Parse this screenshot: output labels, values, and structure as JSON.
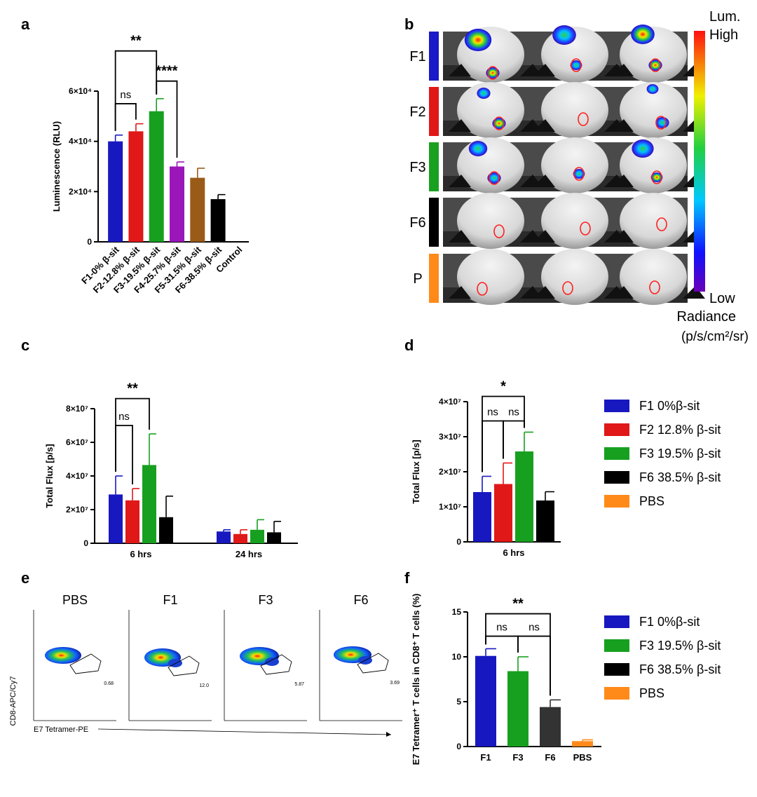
{
  "panel_labels": {
    "a": "a",
    "b": "b",
    "c": "c",
    "d": "d",
    "e": "e",
    "f": "f"
  },
  "chart_data": [
    {
      "id": "a",
      "type": "bar",
      "ylabel": "Luminescence (RLU)",
      "categories": [
        "F1-0% β-sit",
        "F2-12.8% β-sit",
        "F3-19.5% β-sit",
        "F4-25.7% β-sit",
        "F5-31.5% β-sit",
        "F6-38.5% β-sit",
        "Control"
      ],
      "values": [
        40000,
        44000,
        52000,
        30000,
        25500,
        17000,
        0
      ],
      "errors": [
        2500,
        3000,
        5000,
        1800,
        3800,
        1800,
        0
      ],
      "colors": [
        "#1818c0",
        "#e01818",
        "#17a020",
        "#9a16b8",
        "#9a5a18",
        "#000000",
        "#000000"
      ],
      "ylim": [
        0,
        60000
      ],
      "yticks": [
        {
          "v": 0,
          "t": "0"
        },
        {
          "v": 20000,
          "t": "2×10⁴"
        },
        {
          "v": 40000,
          "t": "4×10⁴"
        },
        {
          "v": 60000,
          "t": "6×10⁴"
        }
      ],
      "sig": [
        {
          "from": 0,
          "to": 1,
          "label": "ns",
          "y": 55000,
          "tall": true
        },
        {
          "from": 2,
          "to": 3,
          "label": "****",
          "y": 64000
        },
        {
          "from": 0,
          "to": 2,
          "label": "**",
          "y": 76000
        }
      ]
    },
    {
      "id": "c",
      "type": "bar",
      "ylabel": "Total Flux [p/s]",
      "groups": [
        "6 hrs",
        "24 hrs"
      ],
      "series": [
        {
          "name": "F1",
          "color": "#1818c0",
          "values": [
            29000000,
            7000000
          ],
          "errors": [
            11000000,
            1000000
          ]
        },
        {
          "name": "F2",
          "color": "#e01818",
          "values": [
            25500000,
            5500000
          ],
          "errors": [
            7000000,
            2500000
          ]
        },
        {
          "name": "F3",
          "color": "#17a020",
          "values": [
            46500000,
            8000000
          ],
          "errors": [
            18500000,
            6000000
          ]
        },
        {
          "name": "F6",
          "color": "#000000",
          "values": [
            15500000,
            6500000
          ],
          "errors": [
            12500000,
            6500000
          ]
        }
      ],
      "ylim": [
        0,
        80000000
      ],
      "yticks": [
        {
          "v": 0,
          "t": "0"
        },
        {
          "v": 20000000,
          "t": "2×10⁷"
        },
        {
          "v": 40000000,
          "t": "4×10⁷"
        },
        {
          "v": 60000000,
          "t": "6×10⁷"
        },
        {
          "v": 80000000,
          "t": "8×10⁷"
        }
      ],
      "sig": [
        {
          "from": 0,
          "to": 1,
          "label": "ns",
          "y": 70000000
        },
        {
          "from": 0,
          "to": 2,
          "label": "**",
          "y": 86000000
        }
      ]
    },
    {
      "id": "d",
      "type": "bar",
      "ylabel": "Total Flux [p/s]",
      "groups": [
        "6 hrs"
      ],
      "series": [
        {
          "name": "F1",
          "color": "#1818c0",
          "values": [
            14200000
          ],
          "errors": [
            4500000
          ]
        },
        {
          "name": "F2",
          "color": "#e01818",
          "values": [
            16500000
          ],
          "errors": [
            6000000
          ]
        },
        {
          "name": "F3",
          "color": "#17a020",
          "values": [
            25800000
          ],
          "errors": [
            5500000
          ]
        },
        {
          "name": "F6",
          "color": "#000000",
          "values": [
            11800000
          ],
          "errors": [
            2500000
          ]
        }
      ],
      "ylim": [
        0,
        40000000
      ],
      "yticks": [
        {
          "v": 0,
          "t": "0"
        },
        {
          "v": 10000000,
          "t": "1×10⁷"
        },
        {
          "v": 20000000,
          "t": "2×10⁷"
        },
        {
          "v": 30000000,
          "t": "3×10⁷"
        },
        {
          "v": 40000000,
          "t": "4×10⁷"
        }
      ],
      "sig": [
        {
          "from": 0,
          "to": 1,
          "label": "ns",
          "y": 34500000
        },
        {
          "from": 1,
          "to": 2,
          "label": "ns",
          "y": 34500000
        },
        {
          "from": 0,
          "to": 2,
          "label": "*",
          "y": 41500000
        }
      ]
    },
    {
      "id": "f",
      "type": "bar",
      "ylabel": "E7 Tetramer⁺ T cells in CD8⁺ T cells (%)",
      "categories": [
        "F1",
        "F3",
        "F6",
        "PBS"
      ],
      "values": [
        10.1,
        8.4,
        4.4,
        0.6
      ],
      "errors": [
        0.8,
        1.6,
        0.8,
        0.15
      ],
      "colors": [
        "#1818c0",
        "#17a020",
        "#333333",
        "#ff8a1a"
      ],
      "ylim": [
        0,
        15
      ],
      "yticks": [
        {
          "v": 0,
          "t": "0"
        },
        {
          "v": 5,
          "t": "5"
        },
        {
          "v": 10,
          "t": "10"
        },
        {
          "v": 15,
          "t": "15"
        }
      ],
      "sig": [
        {
          "from": 0,
          "to": 1,
          "label": "ns",
          "y": 12.3
        },
        {
          "from": 1,
          "to": 2,
          "label": "ns",
          "y": 12.3
        },
        {
          "from": 0,
          "to": 2,
          "label": "**",
          "y": 14.8
        }
      ]
    }
  ],
  "legend_d": [
    {
      "label": "F1 0%β-sit",
      "color": "#1818c0"
    },
    {
      "label": "F2 12.8% β-sit",
      "color": "#e01818"
    },
    {
      "label": "F3 19.5% β-sit",
      "color": "#17a020"
    },
    {
      "label": "F6 38.5% β-sit",
      "color": "#000000"
    },
    {
      "label": "PBS",
      "color": "#ff8a1a"
    }
  ],
  "legend_f": [
    {
      "label": "F1 0%β-sit",
      "color": "#1818c0"
    },
    {
      "label": "F3 19.5% β-sit",
      "color": "#17a020"
    },
    {
      "label": "F6 38.5% β-sit",
      "color": "#000000"
    },
    {
      "label": "PBS",
      "color": "#ff8a1a"
    }
  ],
  "panel_b": {
    "rows": [
      {
        "label": "F1",
        "color": "#1a1ac8"
      },
      {
        "label": "F2",
        "color": "#e01818"
      },
      {
        "label": "F3",
        "color": "#1aa020"
      },
      {
        "label": "F6",
        "color": "#000000"
      },
      {
        "label": "P",
        "color": "#ff8a1a"
      }
    ],
    "scale_title": "Lum.",
    "scale_high": "High",
    "scale_low": "Low",
    "scale_unit1": "Radiance",
    "scale_unit2": "(p/s/cm²/sr)"
  },
  "panel_e": {
    "samples": [
      {
        "label": "PBS",
        "gate_value": "0.68"
      },
      {
        "label": "F1",
        "gate_value": "12.0"
      },
      {
        "label": "F3",
        "gate_value": "5.87"
      },
      {
        "label": "F6",
        "gate_value": "3.69"
      }
    ],
    "ylabel": "CD8-APC/Cy7",
    "xlabel": "E7 Tetramer-PE"
  }
}
